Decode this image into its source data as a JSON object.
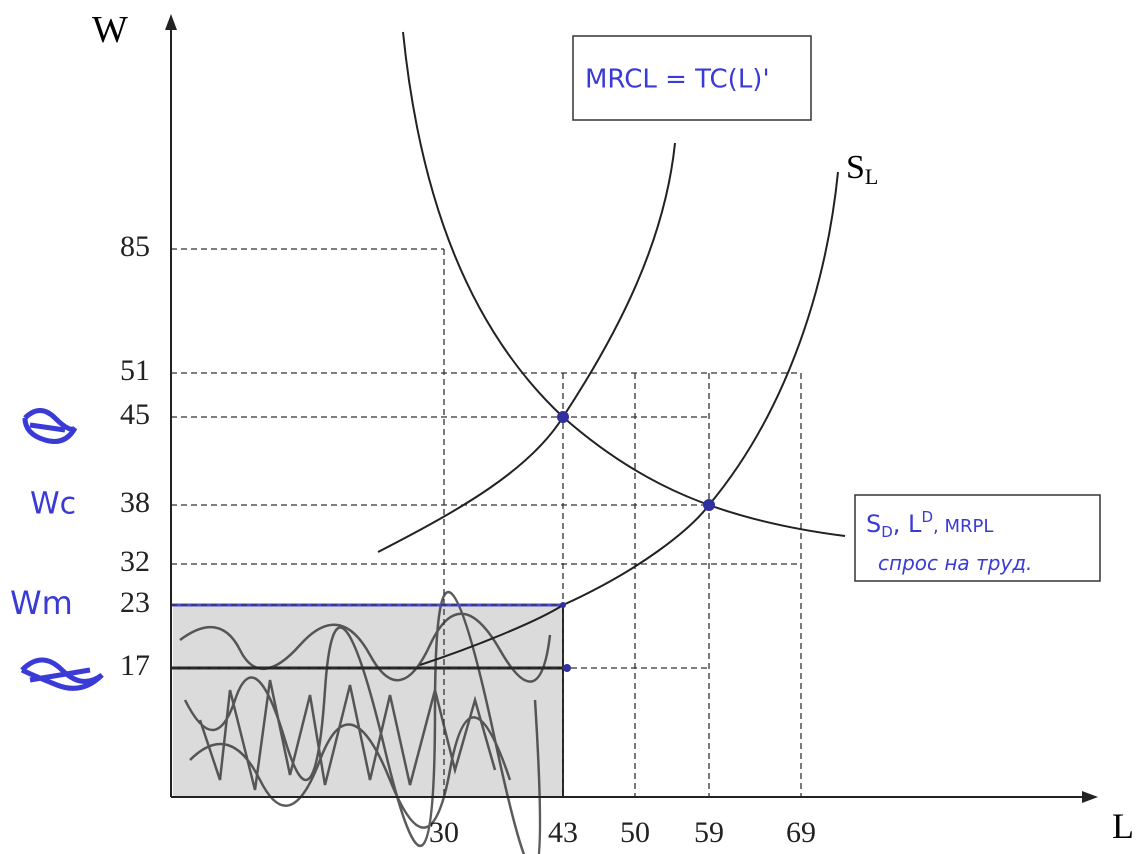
{
  "axes": {
    "y_label": "W",
    "x_label": "L"
  },
  "y_ticks": [
    "85",
    "51",
    "45",
    "38",
    "32",
    "23",
    "17"
  ],
  "x_ticks": [
    "30",
    "43",
    "50",
    "59",
    "69"
  ],
  "supply_label": {
    "main": "S",
    "sub": "L"
  },
  "annotations": {
    "wc": "Wc",
    "wm": "Wm",
    "mrcl": "MRCL = TC(L)'",
    "demand_parts": [
      "S",
      "D",
      ", L",
      "D",
      ", MRPL"
    ],
    "demand_line2": "спрос на труд."
  }
}
